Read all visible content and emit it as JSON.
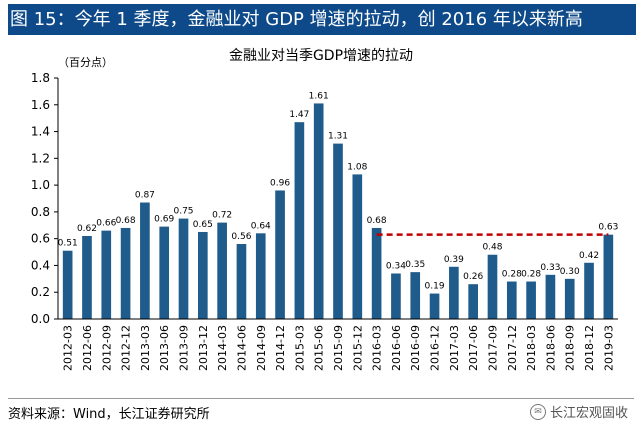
{
  "figure_title": "图 15：今年 1 季度，金融业对 GDP 增速的拉动，创 2016 年以来新高",
  "source_note": "资料来源：Wind，长江证券研究所",
  "watermark": {
    "text": "长江宏观固收",
    "icon": "wechat-icon"
  },
  "colors": {
    "bar": "#1f5c8b",
    "title_bg": "#0e4a8a",
    "ref_line": "#c00000"
  },
  "chart_data": {
    "type": "bar",
    "title": "金融业对当季GDP增速的拉动",
    "unit_label": "（百分点）",
    "xlabel": "",
    "ylabel": "",
    "ylim": [
      0,
      1.8
    ],
    "yticks": [
      "0.0",
      "0.2",
      "0.4",
      "0.6",
      "0.8",
      "1.0",
      "1.2",
      "1.4",
      "1.6",
      "1.8"
    ],
    "grid": false,
    "categories": [
      "2012-03",
      "2012-06",
      "2012-09",
      "2012-12",
      "2013-03",
      "2013-06",
      "2013-09",
      "2013-12",
      "2014-03",
      "2014-06",
      "2014-09",
      "2014-12",
      "2015-03",
      "2015-06",
      "2015-09",
      "2015-12",
      "2016-03",
      "2016-06",
      "2016-09",
      "2016-12",
      "2017-03",
      "2017-06",
      "2017-09",
      "2017-12",
      "2018-03",
      "2018-06",
      "2018-09",
      "2018-12",
      "2019-03"
    ],
    "values": [
      0.51,
      0.62,
      0.66,
      0.68,
      0.87,
      0.69,
      0.75,
      0.65,
      0.72,
      0.56,
      0.64,
      0.96,
      1.47,
      1.61,
      1.31,
      1.08,
      0.68,
      0.34,
      0.35,
      0.19,
      0.39,
      0.26,
      0.48,
      0.28,
      0.28,
      0.33,
      0.3,
      0.42,
      0.63
    ],
    "value_labels": [
      "0.51",
      "0.62",
      "0.66",
      "0.68",
      "0.87",
      "0.69",
      "0.75",
      "0.65",
      "0.72",
      "0.56",
      "0.64",
      "0.96",
      "1.47",
      "1.61",
      "1.31",
      "1.08",
      "0.68",
      "0.34",
      "0.35",
      "0.19",
      "0.39",
      "0.26",
      "0.48",
      "0.28",
      "0.28",
      "0.33",
      "0.30",
      "0.42",
      "0.63"
    ],
    "reference_line": {
      "y": 0.63,
      "from": "2016-03",
      "to": "2019-03",
      "style": "dashed",
      "color": "#c00000"
    }
  }
}
